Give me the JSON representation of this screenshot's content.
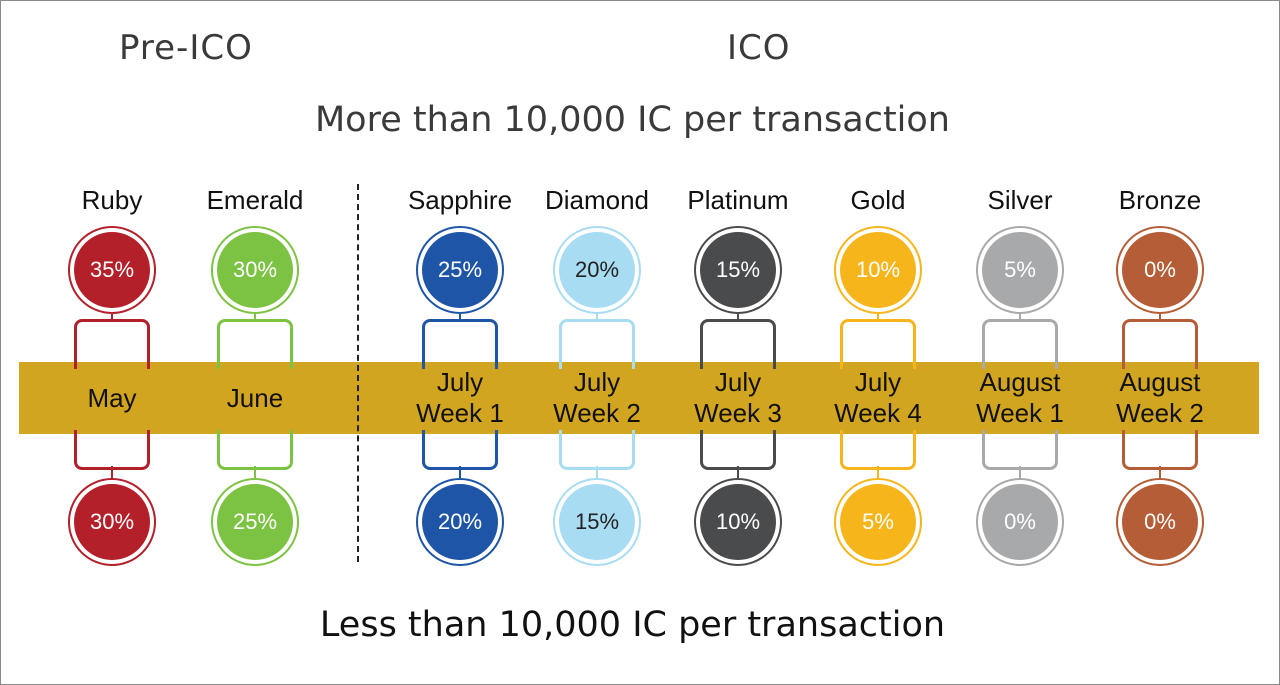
{
  "phases": {
    "pre_ico": "Pre-ICO",
    "ico": "ICO"
  },
  "headline_top": "More than 10,000 IC per transaction",
  "headline_bottom": "Less than 10,000 IC per transaction",
  "tiers": [
    {
      "name": "Ruby",
      "bonus_over_10k": "35%",
      "bonus_under_10k": "30%",
      "period_line1": "May",
      "period_line2": "",
      "color": "#b3202a",
      "text_color": "#ffffff"
    },
    {
      "name": "Emerald",
      "bonus_over_10k": "30%",
      "bonus_under_10k": "25%",
      "period_line1": "June",
      "period_line2": "",
      "color": "#7cc243",
      "text_color": "#ffffff"
    },
    {
      "name": "Sapphire",
      "bonus_over_10k": "25%",
      "bonus_under_10k": "20%",
      "period_line1": "July",
      "period_line2": "Week 1",
      "color": "#1f55a6",
      "text_color": "#ffffff"
    },
    {
      "name": "Diamond",
      "bonus_over_10k": "20%",
      "bonus_under_10k": "15%",
      "period_line1": "July",
      "period_line2": "Week 2",
      "color": "#a8dcf2",
      "text_color": "#222222"
    },
    {
      "name": "Platinum",
      "bonus_over_10k": "15%",
      "bonus_under_10k": "10%",
      "period_line1": "July",
      "period_line2": "Week 3",
      "color": "#4a4b4d",
      "text_color": "#ffffff"
    },
    {
      "name": "Gold",
      "bonus_over_10k": "10%",
      "bonus_under_10k": "5%",
      "period_line1": "July",
      "period_line2": "Week 4",
      "color": "#f6b61b",
      "text_color": "#ffffff"
    },
    {
      "name": "Silver",
      "bonus_over_10k": "5%",
      "bonus_under_10k": "0%",
      "period_line1": "August",
      "period_line2": "Week 1",
      "color": "#a8a9ab",
      "text_color": "#ffffff"
    },
    {
      "name": "Bronze",
      "bonus_over_10k": "0%",
      "bonus_under_10k": "0%",
      "period_line1": "August",
      "period_line2": "Week 2",
      "color": "#b55d37",
      "text_color": "#ffffff"
    }
  ]
}
